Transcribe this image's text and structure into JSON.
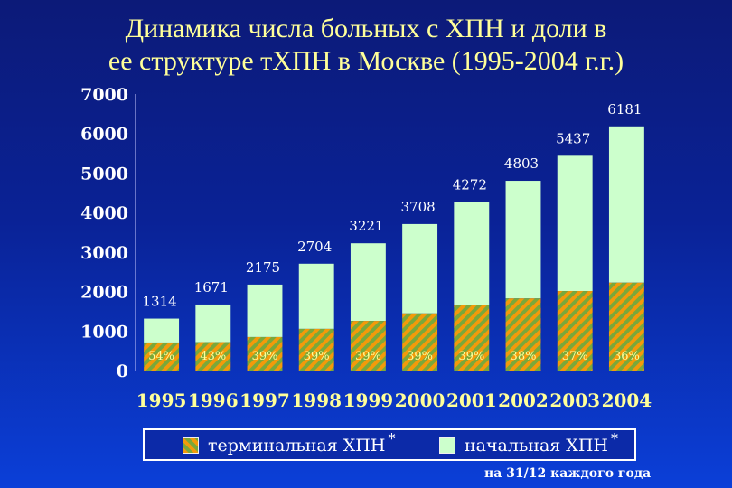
{
  "chart_data": {
    "type": "bar",
    "stacked": true,
    "title_lines": [
      "Динамика числа больных с ХПН и доли в",
      "ее структуре тХПН в Москве (1995-2004 г.г.)"
    ],
    "categories": [
      "1995",
      "1996",
      "1997",
      "1998",
      "1999",
      "2000",
      "2001",
      "2002",
      "2003",
      "2004"
    ],
    "totals": [
      1314,
      1671,
      2175,
      2704,
      3221,
      3708,
      4272,
      4803,
      5437,
      6181
    ],
    "total_labels": [
      "1314",
      "1671",
      "2175",
      "2704",
      "3221",
      "3708",
      "4272",
      "4803",
      "5437",
      "6181"
    ],
    "terminal_share_labels": [
      "54%",
      "43%",
      "39%",
      "39%",
      "39%",
      "39%",
      "39%",
      "38%",
      "37%",
      "36%"
    ],
    "series": [
      {
        "name": "терминальная ХПН",
        "values": [
          710,
          719,
          848,
          1055,
          1256,
          1446,
          1666,
          1825,
          2012,
          2225
        ],
        "color": "#f39a0a"
      },
      {
        "name": "начальная ХПН",
        "values": [
          604,
          952,
          1327,
          1649,
          1965,
          2262,
          2606,
          2978,
          3425,
          3956
        ],
        "color": "#ccffcc"
      }
    ],
    "yticks": [
      "0",
      "1000",
      "2000",
      "3000",
      "4000",
      "5000",
      "6000",
      "7000"
    ],
    "ylim": [
      0,
      7000
    ],
    "grid": false,
    "legend_position": "bottom"
  },
  "legend": {
    "terminal_label": "терминальная ХПН",
    "initial_label": "начальная ХПН",
    "asterisk": "*"
  },
  "footnote": "на 31/12 каждого года"
}
